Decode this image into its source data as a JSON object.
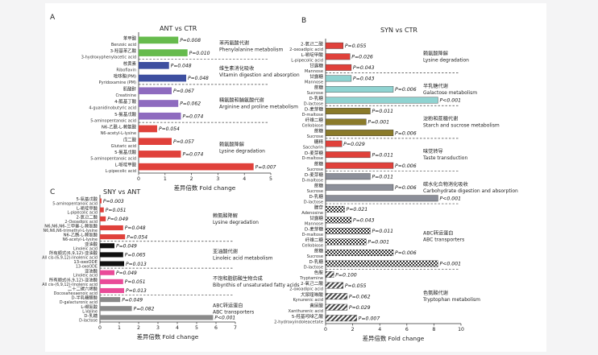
{
  "chart_data": [
    {
      "panel_letter": "A",
      "type": "bar",
      "orientation": "horizontal",
      "title": "ANT vs CTR",
      "xlabel": "差异倍数 Fold change",
      "xlim": [
        0,
        5
      ],
      "xticks": [
        0,
        1,
        2,
        3,
        4,
        5
      ],
      "groups": [
        {
          "label_cn": "苯丙氨酸代谢",
          "label_en": "Phenylalanine metabolism",
          "color": "#66bb4d",
          "bars": [
            {
              "cn": "苯甲酸",
              "en": "Benzoic acid",
              "value": 1.5,
              "p": "P=0.008"
            },
            {
              "cn": "3-羟基苯乙酸",
              "en": "3-hydroxyphenylacetic acid",
              "value": 1.85,
              "p": "P=0.010"
            }
          ]
        },
        {
          "label_cn": "维生素消化吸收",
          "label_en": "Vitamin digestion and absorption",
          "color": "#3d4fa0",
          "bars": [
            {
              "cn": "核黄素",
              "en": "Riboflavin",
              "value": 1.15,
              "p": "P=0.048"
            },
            {
              "cn": "吡哆胺(PM)",
              "en": "Pyridoxamine (PM)",
              "value": 1.8,
              "p": "P=0.048"
            }
          ]
        },
        {
          "label_cn": "精氨酸和脯氨酸代谢",
          "label_en": "Arginine and proline metabolism",
          "color": "#8e6bbf",
          "bars": [
            {
              "cn": "肌酸酐",
              "en": "Creatinine",
              "value": 1.25,
              "p": "P=0.067"
            },
            {
              "cn": "4-胍基丁酸",
              "en": "4-guanidinobutyric acid",
              "value": 1.5,
              "p": "P=0.062"
            },
            {
              "cn": "5-氨基戊酸",
              "en": "5-aminopentanoic acid",
              "value": 1.6,
              "p": "P=0.074"
            }
          ]
        },
        {
          "label_cn": "赖氨酸降解",
          "label_en": "Lysine degradation",
          "color": "#e0413b",
          "bars": [
            {
              "cn": "N6-乙酰-L-赖氨酸",
              "en": "N6-acetyl-L-lysine",
              "value": 0.7,
              "p": "P=0.054"
            },
            {
              "cn": "戊二酸",
              "en": "Glutaric acid",
              "value": 1.25,
              "p": "P=0.057"
            },
            {
              "cn": "5-氨基戊酸",
              "en": "5-aminopentanoic acid",
              "value": 1.6,
              "p": "P=0.074"
            },
            {
              "cn": "L-哌啶甲酸",
              "en": "L-pipecolic acid",
              "value": 4.35,
              "p": "P=0.007"
            }
          ]
        }
      ]
    },
    {
      "panel_letter": "B",
      "type": "bar",
      "orientation": "horizontal",
      "title": "SYN vs CTR",
      "xlabel": "差异倍数 Fold change",
      "xlim": [
        0,
        10
      ],
      "xticks": [
        0,
        2,
        4,
        6,
        8,
        10
      ],
      "groups": [
        {
          "label_cn": "赖氨酸降解",
          "label_en": "Lysine degradation",
          "color": "#e0413b",
          "pattern": "solid",
          "bars": [
            {
              "cn": "2-氧己二酸",
              "en": "2-oxoadipic acid",
              "value": 1.3,
              "p": "P=0.055"
            },
            {
              "cn": "L-哌啶甲酸",
              "en": "L-pipecolic acid",
              "value": 1.8,
              "p": "P=0.026"
            },
            {
              "cn": "甘露糖",
              "en": "Mannose",
              "value": 1.9,
              "p": "P=0.043"
            }
          ]
        },
        {
          "label_cn": "半乳糖代谢",
          "label_en": "Galactose metabolism",
          "color": "#8fd3d1",
          "pattern": "solid",
          "bars": [
            {
              "cn": "甘露糖",
              "en": "Mannose",
              "value": 1.9,
              "p": "P=0.043"
            },
            {
              "cn": "蔗糖",
              "en": "Sucrose",
              "value": 5.0,
              "p": "P=0.006"
            },
            {
              "cn": "D-乳糖",
              "en": "D-lactose",
              "value": 8.3,
              "p": "P<0.001"
            }
          ]
        },
        {
          "label_cn": "淀粉和蔗糖代谢",
          "label_en": "Starch and sucrose metabolism",
          "color": "#8a7a2a",
          "pattern": "solid",
          "bars": [
            {
              "cn": "D-麦芽糖",
              "en": "D-maltose",
              "value": 3.3,
              "p": "P=0.011"
            },
            {
              "cn": "纤维二糖",
              "en": "Cellobiose",
              "value": 3.0,
              "p": "P=0.001"
            },
            {
              "cn": "蔗糖",
              "en": "Sucrose",
              "value": 5.0,
              "p": "P=0.006"
            }
          ]
        },
        {
          "label_cn": "味觉转导",
          "label_en": "Taste transduction",
          "color": "#e0413b",
          "pattern": "solid",
          "bars": [
            {
              "cn": "糖精",
              "en": "Saccharin",
              "value": 1.2,
              "p": "P=0.029"
            },
            {
              "cn": "D-麦芽糖",
              "en": "D-maltose",
              "value": 3.3,
              "p": "P=0.011"
            },
            {
              "cn": "蔗糖",
              "en": "Sucrose",
              "value": 5.0,
              "p": "P=0.006"
            }
          ]
        },
        {
          "label_cn": "碳水化合物消化吸收",
          "label_en": "Carbohydrate digestion and absorption",
          "color": "#8c8f99",
          "pattern": "solid",
          "bars": [
            {
              "cn": "D-麦芽糖",
              "en": "D-maltose",
              "value": 3.3,
              "p": "P=0.011"
            },
            {
              "cn": "蔗糖",
              "en": "Sucrose",
              "value": 5.0,
              "p": "P=0.006"
            },
            {
              "cn": "D-乳糖",
              "en": "D-lactose",
              "value": 8.3,
              "p": "P<0.001"
            }
          ]
        },
        {
          "label_cn": "ABC转运蛋白",
          "label_en": "ABC transporters",
          "color": "#555555",
          "pattern": "check",
          "bars": [
            {
              "cn": "腺苷",
              "en": "Adenosine",
              "value": 1.4,
              "p": "P=0.021"
            },
            {
              "cn": "甘露糖",
              "en": "Mannose",
              "value": 1.9,
              "p": "P=0.043"
            },
            {
              "cn": "D-麦芽糖",
              "en": "D-maltose",
              "value": 3.3,
              "p": "P=0.011"
            },
            {
              "cn": "纤维二糖",
              "en": "Cellobiose",
              "value": 3.0,
              "p": "P=0.001"
            },
            {
              "cn": "蔗糖",
              "en": "Sucrose",
              "value": 5.0,
              "p": "P=0.006"
            },
            {
              "cn": "D-乳糖",
              "en": "D-lactose",
              "value": 8.3,
              "p": "P<0.001"
            }
          ]
        },
        {
          "label_cn": "色氨酸代谢",
          "label_en": "Tryptophan metabolism",
          "color": "#555555",
          "pattern": "hatch",
          "bars": [
            {
              "cn": "色胺",
              "en": "Tryptamine",
              "value": 0.6,
              "p": "P=0.100"
            },
            {
              "cn": "2-氧己二酸",
              "en": "2-oxoadipic acid",
              "value": 1.3,
              "p": "P=0.055"
            },
            {
              "cn": "犬尿喹啉酸",
              "en": "Kynurenic acid",
              "value": 1.6,
              "p": "P=0.062"
            },
            {
              "cn": "黄尿酸",
              "en": "Xanthurenic acid",
              "value": 1.6,
              "p": "P=0.029"
            },
            {
              "cn": "5-羟基吲哚乙酸",
              "en": "2-hydroxyindoleacetate",
              "value": 2.3,
              "p": "P=0.007"
            }
          ]
        }
      ]
    },
    {
      "panel_letter": "C",
      "type": "bar",
      "orientation": "horizontal",
      "title": "SNY vs ANT",
      "xlabel": "差异倍数 Fold change",
      "xlim": [
        0,
        7
      ],
      "xticks": [
        0,
        1,
        2,
        3,
        4,
        5,
        6,
        7
      ],
      "groups": [
        {
          "label_cn": "赖氨酸降解",
          "label_en": "Lysine degradation",
          "color": "#e0413b",
          "bars": [
            {
              "cn": "5-氨基戊酸",
              "en": "5-aminopentanoic acid",
              "value": 0.08,
              "p": "P=0.003"
            },
            {
              "cn": "L-哌啶甲酸",
              "en": "L-pipecolic acid",
              "value": 0.2,
              "p": "P=0.051"
            },
            {
              "cn": "2-氧己二酸",
              "en": "2-Oxoadipic acid",
              "value": 0.3,
              "p": "P=0.049"
            },
            {
              "cn": "N6,N6,N6-三甲基-L-赖氨酸",
              "en": "N6,N6,N6-trimethyl-L-lysine",
              "value": 1.2,
              "p": "P=0.048"
            },
            {
              "cn": "N6-乙酰-L-赖氨酸",
              "en": "N6-acetyl-L-lysine",
              "value": 1.3,
              "p": "P=0.054"
            }
          ]
        },
        {
          "label_cn": "亚油酸代谢",
          "label_en": "Linoleic acid metabolism",
          "color": "#111111",
          "bars": [
            {
              "cn": "亚油酸",
              "en": "Linoleic acid",
              "value": 0.75,
              "p": "P=0.049"
            },
            {
              "cn": "所有顺式(6,9,12)-亚油酸",
              "en": "All cis-(6,9,12)-linolenic acid",
              "value": 1.2,
              "p": "P=0.065"
            },
            {
              "cn": "13-oxoODE",
              "en": "13-oxoODE",
              "value": 1.25,
              "p": "P=0.013"
            }
          ]
        },
        {
          "label_cn": "不饱和脂肪酸生物合成",
          "label_en": "Bibynthis of unsaturated fatty acids",
          "color": "#e94b98",
          "bars": [
            {
              "cn": "亚油酸",
              "en": "Linoleic acid",
              "value": 0.75,
              "p": "P=0.049"
            },
            {
              "cn": "所有顺式(6,9,12)-亚油酸",
              "en": "All cis-(6,9,12)-linolenic acid",
              "value": 1.2,
              "p": "P=0.051"
            },
            {
              "cn": "二十二碳六烯酸",
              "en": "Docosahexaenoic acid",
              "value": 1.25,
              "p": "P=0.013"
            }
          ]
        },
        {
          "label_cn": "ABC转运蛋白",
          "label_en": "ABC transporters",
          "color": "#8a8a8a",
          "bars": [
            {
              "cn": "D-半乳糖醛酸",
              "en": "D-galacturonic acid",
              "value": 1.05,
              "p": "P=0.049"
            },
            {
              "cn": "L-缬氨酸",
              "en": "L-Valine",
              "value": 1.65,
              "p": "P=0.082"
            },
            {
              "cn": "D-乳糖",
              "en": "D-lactose",
              "value": 5.85,
              "p": "P<0.001"
            }
          ]
        }
      ]
    }
  ]
}
